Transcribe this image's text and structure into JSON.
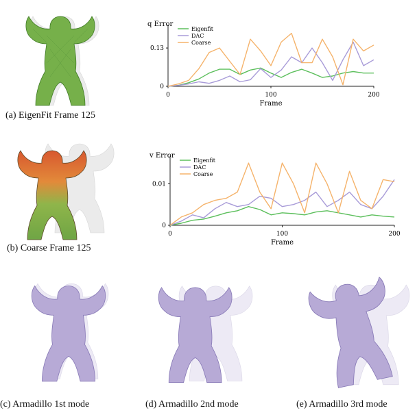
{
  "captions": {
    "a": "(a) EigenFit Frame 125",
    "b": "(b) Coarse Frame 125",
    "c": "(c) Armadillo 1st mode",
    "d": "(d) Armadillo 2nd mode",
    "e": "(e) Armadillo 3rd mode"
  },
  "colors": {
    "eigenfit": "#5cbf5c",
    "dac": "#a89bd8",
    "coarse": "#f5b36b",
    "mesh_purple": "#b7aad6",
    "mesh_green": "#76b04a",
    "mesh_red": "#d8582f"
  },
  "chart_data": [
    {
      "type": "line",
      "ylabel": "q Error",
      "xlabel": "Frame",
      "xlim": [
        0,
        200
      ],
      "ylim": [
        0,
        0.2
      ],
      "yticks": [
        "0",
        "0.13"
      ],
      "xticks": [
        "0",
        "100",
        "200"
      ],
      "legend_position": "top-left",
      "series": [
        {
          "name": "Eigenfit",
          "x": [
            0,
            10,
            20,
            30,
            40,
            50,
            60,
            70,
            80,
            90,
            100,
            110,
            120,
            130,
            140,
            150,
            160,
            170,
            180,
            190,
            200
          ],
          "y": [
            0,
            0.003,
            0.012,
            0.025,
            0.045,
            0.058,
            0.058,
            0.04,
            0.055,
            0.062,
            0.045,
            0.03,
            0.047,
            0.058,
            0.045,
            0.03,
            0.035,
            0.045,
            0.05,
            0.045,
            0.045
          ]
        },
        {
          "name": "DAC",
          "x": [
            0,
            10,
            20,
            30,
            40,
            50,
            60,
            70,
            80,
            90,
            100,
            110,
            120,
            130,
            140,
            150,
            160,
            170,
            180,
            190,
            200
          ],
          "y": [
            0,
            0.003,
            0.008,
            0.015,
            0.01,
            0.02,
            0.035,
            0.015,
            0.022,
            0.06,
            0.03,
            0.055,
            0.1,
            0.08,
            0.13,
            0.08,
            0.02,
            0.09,
            0.15,
            0.07,
            0.09
          ]
        },
        {
          "name": "Coarse",
          "x": [
            0,
            10,
            20,
            30,
            40,
            50,
            60,
            70,
            80,
            90,
            100,
            110,
            120,
            130,
            140,
            150,
            160,
            170,
            180,
            190,
            200
          ],
          "y": [
            0,
            0.008,
            0.02,
            0.06,
            0.115,
            0.13,
            0.085,
            0.04,
            0.16,
            0.12,
            0.07,
            0.15,
            0.18,
            0.08,
            0.08,
            0.16,
            0.1,
            0.005,
            0.16,
            0.12,
            0.14
          ]
        }
      ]
    },
    {
      "type": "line",
      "ylabel": "v Error",
      "xlabel": "Frame",
      "xlim": [
        0,
        200
      ],
      "ylim": [
        0,
        0.016
      ],
      "yticks": [
        "0",
        "0.01"
      ],
      "xticks": [
        "0",
        "100",
        "200"
      ],
      "legend_position": "top-left",
      "series": [
        {
          "name": "Eigenfit",
          "x": [
            0,
            10,
            20,
            30,
            40,
            50,
            60,
            70,
            80,
            90,
            100,
            110,
            120,
            130,
            140,
            150,
            160,
            170,
            180,
            190,
            200
          ],
          "y": [
            0,
            0.0005,
            0.0012,
            0.0015,
            0.0022,
            0.003,
            0.0035,
            0.0045,
            0.0038,
            0.0025,
            0.003,
            0.0028,
            0.0025,
            0.0032,
            0.0035,
            0.003,
            0.0025,
            0.002,
            0.0025,
            0.0022,
            0.002
          ]
        },
        {
          "name": "DAC",
          "x": [
            0,
            10,
            20,
            30,
            40,
            50,
            60,
            70,
            80,
            90,
            100,
            110,
            120,
            130,
            140,
            150,
            160,
            170,
            180,
            190,
            200
          ],
          "y": [
            0,
            0.001,
            0.0025,
            0.0018,
            0.004,
            0.0055,
            0.0045,
            0.005,
            0.007,
            0.0065,
            0.0045,
            0.005,
            0.006,
            0.008,
            0.0045,
            0.006,
            0.008,
            0.005,
            0.004,
            0.007,
            0.011
          ]
        },
        {
          "name": "Coarse",
          "x": [
            0,
            10,
            20,
            30,
            40,
            50,
            60,
            70,
            80,
            90,
            100,
            110,
            120,
            130,
            140,
            150,
            160,
            170,
            180,
            190,
            200
          ],
          "y": [
            0,
            0.002,
            0.003,
            0.005,
            0.006,
            0.0065,
            0.008,
            0.015,
            0.008,
            0.004,
            0.015,
            0.01,
            0.003,
            0.015,
            0.01,
            0.003,
            0.013,
            0.006,
            0.004,
            0.011,
            0.0105
          ]
        }
      ]
    }
  ]
}
